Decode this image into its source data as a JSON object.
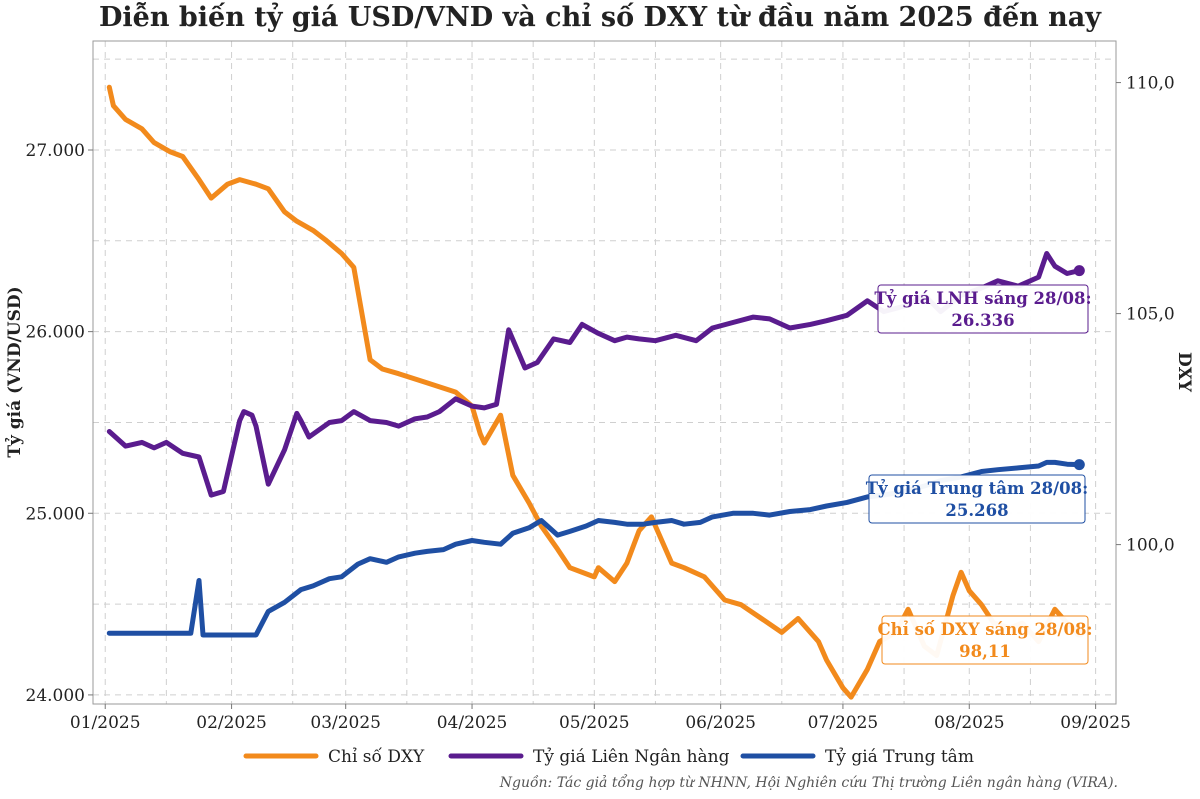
{
  "chart_data": {
    "type": "line",
    "title": "Diễn biến tỷ giá USD/VND và chỉ số DXY từ đầu năm 2025 đến nay",
    "ylabel": "Tỷ giá (VND/USD)",
    "y2label": "DXY",
    "ylim": [
      23950,
      27600
    ],
    "y2lim": [
      96.55,
      110.9
    ],
    "xlim": [
      "2024-12-29",
      "2025-09-06"
    ],
    "yticks": [
      "24.000",
      "25.000",
      "26.000",
      "27.000"
    ],
    "y2ticks": [
      "100,0",
      "105,0",
      "110,0"
    ],
    "xticks": [
      "01/2025",
      "02/2025",
      "03/2025",
      "04/2025",
      "05/2025",
      "06/2025",
      "07/2025",
      "08/2025",
      "09/2025"
    ],
    "grid": true,
    "legend_position": "bottom",
    "series": [
      {
        "name": "Chỉ số DXY",
        "axis": "right",
        "color": "#f28a1c",
        "x": [
          "2025-01-02",
          "2025-01-03",
          "2025-01-06",
          "2025-01-10",
          "2025-01-13",
          "2025-01-17",
          "2025-01-20",
          "2025-01-24",
          "2025-01-27",
          "2025-01-31",
          "2025-02-03",
          "2025-02-07",
          "2025-02-10",
          "2025-02-14",
          "2025-02-17",
          "2025-02-21",
          "2025-02-24",
          "2025-02-28",
          "2025-03-03",
          "2025-03-07",
          "2025-03-10",
          "2025-03-14",
          "2025-03-21",
          "2025-03-28",
          "2025-04-01",
          "2025-04-03",
          "2025-04-04",
          "2025-04-08",
          "2025-04-11",
          "2025-04-15",
          "2025-04-18",
          "2025-04-22",
          "2025-04-25",
          "2025-05-01",
          "2025-05-02",
          "2025-05-06",
          "2025-05-09",
          "2025-05-12",
          "2025-05-15",
          "2025-05-20",
          "2025-05-23",
          "2025-05-28",
          "2025-06-02",
          "2025-06-06",
          "2025-06-11",
          "2025-06-16",
          "2025-06-20",
          "2025-06-25",
          "2025-06-27",
          "2025-07-01",
          "2025-07-03",
          "2025-07-07",
          "2025-07-10",
          "2025-07-14",
          "2025-07-17",
          "2025-07-21",
          "2025-07-24",
          "2025-07-28",
          "2025-07-30",
          "2025-08-01",
          "2025-08-04",
          "2025-08-07",
          "2025-08-11",
          "2025-08-14",
          "2025-08-18",
          "2025-08-22",
          "2025-08-25",
          "2025-08-28"
        ],
        "values": [
          109.9,
          109.5,
          109.2,
          109.0,
          108.7,
          108.5,
          108.4,
          107.9,
          107.5,
          107.8,
          107.9,
          107.8,
          107.7,
          107.2,
          107.0,
          106.8,
          106.6,
          106.3,
          106.0,
          104.0,
          103.8,
          103.7,
          103.5,
          103.3,
          103.0,
          102.4,
          102.2,
          102.8,
          101.5,
          100.9,
          100.4,
          99.9,
          99.5,
          99.3,
          99.5,
          99.2,
          99.6,
          100.3,
          100.6,
          99.6,
          99.5,
          99.3,
          98.8,
          98.7,
          98.4,
          98.1,
          98.4,
          97.9,
          97.5,
          96.9,
          96.7,
          97.3,
          97.9,
          98.1,
          98.6,
          97.8,
          97.6,
          98.9,
          99.4,
          99.0,
          98.7,
          98.3,
          98.2,
          98.3,
          97.9,
          98.6,
          98.3,
          98.11
        ]
      },
      {
        "name": "Tỷ giá Liên Ngân hàng",
        "axis": "left",
        "color": "#5a1c8e",
        "x": [
          "2025-01-02",
          "2025-01-06",
          "2025-01-10",
          "2025-01-13",
          "2025-01-16",
          "2025-01-20",
          "2025-01-24",
          "2025-01-27",
          "2025-01-30",
          "2025-02-03",
          "2025-02-04",
          "2025-02-06",
          "2025-02-07",
          "2025-02-10",
          "2025-02-14",
          "2025-02-17",
          "2025-02-18",
          "2025-02-20",
          "2025-02-25",
          "2025-02-28",
          "2025-03-03",
          "2025-03-07",
          "2025-03-11",
          "2025-03-14",
          "2025-03-18",
          "2025-03-21",
          "2025-03-24",
          "2025-03-28",
          "2025-04-01",
          "2025-04-04",
          "2025-04-07",
          "2025-04-10",
          "2025-04-14",
          "2025-04-17",
          "2025-04-21",
          "2025-04-25",
          "2025-04-28",
          "2025-05-02",
          "2025-05-06",
          "2025-05-09",
          "2025-05-12",
          "2025-05-16",
          "2025-05-21",
          "2025-05-26",
          "2025-05-30",
          "2025-06-04",
          "2025-06-09",
          "2025-06-13",
          "2025-06-18",
          "2025-06-23",
          "2025-06-27",
          "2025-07-02",
          "2025-07-07",
          "2025-07-11",
          "2025-07-16",
          "2025-07-21",
          "2025-07-25",
          "2025-07-30",
          "2025-08-04",
          "2025-08-08",
          "2025-08-13",
          "2025-08-18",
          "2025-08-20",
          "2025-08-22",
          "2025-08-25",
          "2025-08-28"
        ],
        "values": [
          25450,
          25370,
          25390,
          25360,
          25390,
          25330,
          25310,
          25100,
          25120,
          25510,
          25560,
          25540,
          25480,
          25160,
          25350,
          25550,
          25510,
          25420,
          25500,
          25510,
          25560,
          25510,
          25500,
          25480,
          25520,
          25530,
          25560,
          25630,
          25590,
          25580,
          25600,
          26010,
          25800,
          25830,
          25960,
          25940,
          26040,
          25990,
          25950,
          25970,
          25960,
          25950,
          25980,
          25950,
          26020,
          26050,
          26080,
          26070,
          26020,
          26040,
          26060,
          26090,
          26170,
          26110,
          26140,
          26200,
          26110,
          26200,
          26240,
          26280,
          26250,
          26300,
          26430,
          26360,
          26320,
          26336
        ]
      },
      {
        "name": "Tỷ giá Trung tâm",
        "axis": "left",
        "color": "#1f4fa3",
        "x": [
          "2025-01-02",
          "2025-01-06",
          "2025-01-10",
          "2025-01-14",
          "2025-01-18",
          "2025-01-22",
          "2025-01-24",
          "2025-01-25",
          "2025-01-27",
          "2025-01-30",
          "2025-02-03",
          "2025-02-07",
          "2025-02-10",
          "2025-02-14",
          "2025-02-18",
          "2025-02-21",
          "2025-02-25",
          "2025-02-28",
          "2025-03-04",
          "2025-03-07",
          "2025-03-11",
          "2025-03-14",
          "2025-03-18",
          "2025-03-21",
          "2025-03-25",
          "2025-03-28",
          "2025-04-01",
          "2025-04-04",
          "2025-04-08",
          "2025-04-11",
          "2025-04-15",
          "2025-04-18",
          "2025-04-22",
          "2025-04-25",
          "2025-04-29",
          "2025-05-02",
          "2025-05-06",
          "2025-05-09",
          "2025-05-13",
          "2025-05-16",
          "2025-05-20",
          "2025-05-23",
          "2025-05-27",
          "2025-05-30",
          "2025-06-04",
          "2025-06-09",
          "2025-06-13",
          "2025-06-18",
          "2025-06-23",
          "2025-06-27",
          "2025-07-02",
          "2025-07-07",
          "2025-07-11",
          "2025-07-16",
          "2025-07-21",
          "2025-07-25",
          "2025-07-30",
          "2025-08-04",
          "2025-08-08",
          "2025-08-13",
          "2025-08-18",
          "2025-08-20",
          "2025-08-22",
          "2025-08-25",
          "2025-08-28"
        ],
        "values": [
          24340,
          24340,
          24340,
          24340,
          24340,
          24340,
          24630,
          24330,
          24330,
          24330,
          24330,
          24330,
          24460,
          24510,
          24580,
          24600,
          24640,
          24650,
          24720,
          24750,
          24730,
          24760,
          24780,
          24790,
          24800,
          24830,
          24850,
          24840,
          24830,
          24890,
          24920,
          24960,
          24880,
          24900,
          24930,
          24960,
          24950,
          24940,
          24940,
          24950,
          24960,
          24940,
          24950,
          24980,
          25000,
          25000,
          24990,
          25010,
          25020,
          25040,
          25060,
          25090,
          25100,
          25120,
          25150,
          25180,
          25200,
          25230,
          25240,
          25250,
          25260,
          25280,
          25280,
          25270,
          25268
        ]
      }
    ],
    "annotations": [
      {
        "title": "Tỷ giá LNH sáng 28/08:",
        "value": "26.336",
        "color": "#5a1c8e"
      },
      {
        "title": "Tỷ giá Trung tâm 28/08:",
        "value": "25.268",
        "color": "#1f4fa3"
      },
      {
        "title": "Chỉ số DXY sáng 28/08:",
        "value": "98,11",
        "color": "#f28a1c"
      }
    ]
  },
  "source": "Nguồn: Tác giả tổng hợp từ NHNN, Hội Nghiên cứu Thị trường Liên ngân hàng (VIRA)."
}
